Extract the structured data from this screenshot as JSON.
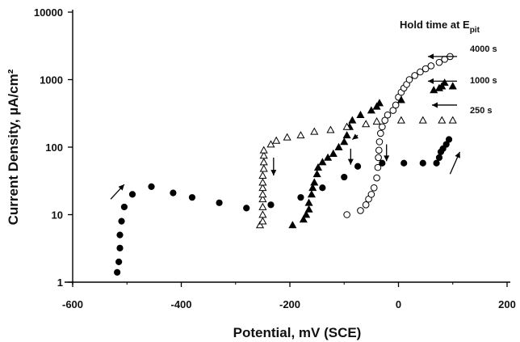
{
  "chart_data": {
    "type": "scatter",
    "xlabel": "Potential, mV (SCE)",
    "ylabel": "Current Density, µA/cm²",
    "xlim": [
      -600,
      200
    ],
    "ylim": [
      1,
      10000
    ],
    "y_scale": "log",
    "x_ticks": [
      "-600",
      "-400",
      "-200",
      "0",
      "200"
    ],
    "y_ticks": [
      "1",
      "10",
      "100",
      "1000",
      "10000"
    ],
    "legend_title": "Hold time at E",
    "legend_title_sub": "pit",
    "series": [
      {
        "name": "4000 s",
        "marker": "open-circle",
        "points": [
          [
            -95,
            10
          ],
          [
            -70,
            11.5
          ],
          [
            -60,
            14
          ],
          [
            -55,
            17
          ],
          [
            -50,
            20
          ],
          [
            -45,
            25
          ],
          [
            -40,
            35
          ],
          [
            -38,
            50
          ],
          [
            -37,
            70
          ],
          [
            -36,
            90
          ],
          [
            -35,
            120
          ],
          [
            -33,
            160
          ],
          [
            -30,
            200
          ],
          [
            -25,
            250
          ],
          [
            -20,
            300
          ],
          [
            -10,
            350
          ],
          [
            -5,
            420
          ],
          [
            0,
            550
          ],
          [
            5,
            650
          ],
          [
            10,
            750
          ],
          [
            15,
            850
          ],
          [
            20,
            1000
          ],
          [
            30,
            1150
          ],
          [
            40,
            1300
          ],
          [
            50,
            1450
          ],
          [
            60,
            1600
          ],
          [
            75,
            1800
          ],
          [
            85,
            2000
          ],
          [
            95,
            2200
          ]
        ]
      },
      {
        "name": "1000 s",
        "marker": "filled-triangle",
        "points": [
          [
            -195,
            7
          ],
          [
            -175,
            8.5
          ],
          [
            -170,
            10
          ],
          [
            -165,
            12
          ],
          [
            -165,
            15
          ],
          [
            -160,
            20
          ],
          [
            -158,
            25
          ],
          [
            -155,
            30
          ],
          [
            -150,
            40
          ],
          [
            -148,
            50
          ],
          [
            -140,
            60
          ],
          [
            -130,
            70
          ],
          [
            -120,
            80
          ],
          [
            -110,
            100
          ],
          [
            -100,
            120
          ],
          [
            -95,
            150
          ],
          [
            -90,
            200
          ],
          [
            -85,
            250
          ],
          [
            -70,
            300
          ],
          [
            -50,
            350
          ],
          [
            -40,
            400
          ],
          [
            -35,
            450
          ],
          [
            5,
            500
          ],
          [
            65,
            700
          ],
          [
            75,
            750
          ],
          [
            80,
            800
          ],
          [
            85,
            900
          ],
          [
            100,
            800
          ]
        ]
      },
      {
        "name": "250 s",
        "marker": "open-triangle",
        "points": [
          [
            -255,
            7
          ],
          [
            -250,
            8
          ],
          [
            -250,
            10
          ],
          [
            -250,
            13
          ],
          [
            -250,
            17
          ],
          [
            -250,
            20
          ],
          [
            -250,
            25
          ],
          [
            -250,
            30
          ],
          [
            -250,
            38
          ],
          [
            -248,
            48
          ],
          [
            -248,
            60
          ],
          [
            -248,
            75
          ],
          [
            -248,
            90
          ],
          [
            -235,
            110
          ],
          [
            -225,
            125
          ],
          [
            -205,
            140
          ],
          [
            -180,
            150
          ],
          [
            -155,
            170
          ],
          [
            -125,
            180
          ],
          [
            -95,
            200
          ],
          [
            -60,
            220
          ],
          [
            -40,
            240
          ],
          [
            5,
            250
          ],
          [
            45,
            250
          ],
          [
            80,
            250
          ],
          [
            100,
            250
          ]
        ]
      },
      {
        "name": "",
        "marker": "filled-circle",
        "points": [
          [
            -518,
            1.4
          ],
          [
            -515,
            2
          ],
          [
            -513,
            3.2
          ],
          [
            -513,
            5
          ],
          [
            -510,
            8
          ],
          [
            -505,
            13
          ],
          [
            -490,
            20
          ],
          [
            -455,
            26
          ],
          [
            -415,
            21
          ],
          [
            -380,
            18
          ],
          [
            -330,
            15
          ],
          [
            -280,
            12.5
          ],
          [
            -235,
            14
          ],
          [
            -180,
            18
          ],
          [
            -140,
            25
          ],
          [
            -100,
            36
          ],
          [
            -75,
            52
          ],
          [
            -30,
            58
          ],
          [
            10,
            58
          ],
          [
            45,
            58
          ],
          [
            70,
            58
          ],
          [
            75,
            70
          ],
          [
            78,
            85
          ],
          [
            82,
            95
          ],
          [
            88,
            110
          ],
          [
            93,
            130
          ]
        ]
      }
    ],
    "annotations": {
      "arrows": [
        "left at 4000 s",
        "left at 1000 s",
        "left at 250 s",
        "down near -230 mV",
        "down near -85 mV",
        "down near -25 mV",
        "up-right near -500 mV",
        "up-right near 100 mV"
      ]
    }
  }
}
